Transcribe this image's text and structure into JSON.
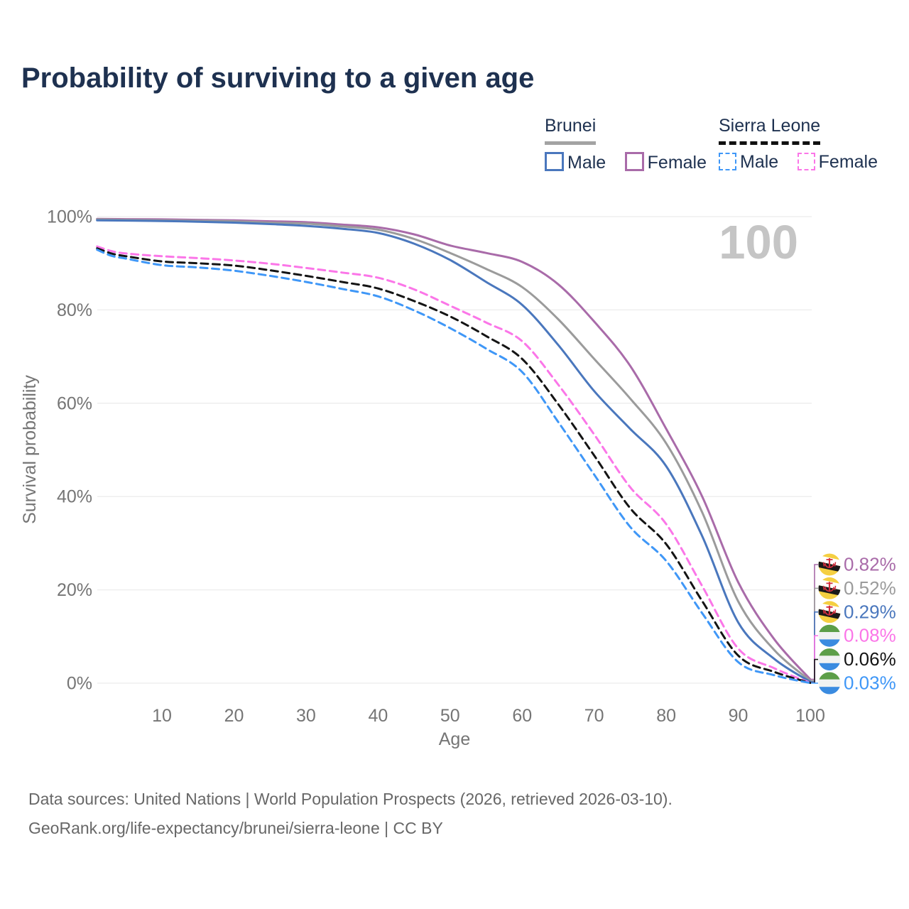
{
  "title": "Probability of surviving to a given age",
  "watermark": "100",
  "legend": {
    "groups": [
      {
        "country": "Brunei",
        "line_style": "solid",
        "underline_color": "#a3a3a3",
        "items": [
          {
            "label": "Male",
            "color": "#4a77bd",
            "dashed": false
          },
          {
            "label": "Female",
            "color": "#a96ba9",
            "dashed": false
          }
        ]
      },
      {
        "country": "Sierra Leone",
        "line_style": "dashed",
        "underline_color": "#111111",
        "items": [
          {
            "label": "Male",
            "color": "#3f97f7",
            "dashed": true
          },
          {
            "label": "Female",
            "color": "#fb76e8",
            "dashed": true
          }
        ]
      }
    ]
  },
  "chart_data": {
    "type": "line",
    "xlabel": "Age",
    "ylabel": "Survival probability",
    "x_ticks": [
      10,
      20,
      30,
      40,
      50,
      60,
      70,
      80,
      90,
      100
    ],
    "y_ticks": [
      {
        "value": 0,
        "label": "0%"
      },
      {
        "value": 20,
        "label": "20%"
      },
      {
        "value": 40,
        "label": "40%"
      },
      {
        "value": 60,
        "label": "60%"
      },
      {
        "value": 80,
        "label": "80%"
      },
      {
        "value": 100,
        "label": "100%"
      }
    ],
    "xlim": [
      1,
      100
    ],
    "ylim": [
      0,
      100
    ],
    "grid": "horizontal-only",
    "legend_position": "top-right",
    "series": [
      {
        "id": "brunei-female",
        "name": "Brunei Female",
        "color": "#a96ba9",
        "dashed": false,
        "end_label": "0.82%",
        "flag": "brunei",
        "points": [
          [
            1,
            99.5
          ],
          [
            5,
            99.45
          ],
          [
            10,
            99.4
          ],
          [
            15,
            99.3
          ],
          [
            20,
            99.2
          ],
          [
            25,
            99.0
          ],
          [
            30,
            98.8
          ],
          [
            35,
            98.3
          ],
          [
            40,
            97.7
          ],
          [
            45,
            96.2
          ],
          [
            50,
            93.8
          ],
          [
            55,
            92.2
          ],
          [
            60,
            90.3
          ],
          [
            65,
            85.5
          ],
          [
            70,
            77.5
          ],
          [
            75,
            68.0
          ],
          [
            80,
            54.5
          ],
          [
            85,
            40.0
          ],
          [
            90,
            21.6
          ],
          [
            95,
            9.4
          ],
          [
            100,
            0.82
          ]
        ]
      },
      {
        "id": "brunei-total",
        "name": "Brunei",
        "color": "#9b9b9b",
        "dashed": false,
        "end_label": "0.52%",
        "flag": "brunei",
        "points": [
          [
            1,
            99.4
          ],
          [
            5,
            99.3
          ],
          [
            10,
            99.2
          ],
          [
            15,
            99.1
          ],
          [
            20,
            99.0
          ],
          [
            25,
            98.7
          ],
          [
            30,
            98.5
          ],
          [
            35,
            97.9
          ],
          [
            40,
            97.2
          ],
          [
            45,
            95.2
          ],
          [
            50,
            92.2
          ],
          [
            55,
            88.8
          ],
          [
            60,
            84.9
          ],
          [
            65,
            78.0
          ],
          [
            70,
            69.5
          ],
          [
            75,
            61.0
          ],
          [
            80,
            51.4
          ],
          [
            85,
            36.6
          ],
          [
            90,
            17.5
          ],
          [
            95,
            7.1
          ],
          [
            100,
            0.52
          ]
        ]
      },
      {
        "id": "brunei-male",
        "name": "Brunei Male",
        "color": "#4a77bd",
        "dashed": false,
        "end_label": "0.29%",
        "flag": "brunei",
        "points": [
          [
            1,
            99.2
          ],
          [
            5,
            99.15
          ],
          [
            10,
            99.05
          ],
          [
            15,
            98.9
          ],
          [
            20,
            98.7
          ],
          [
            25,
            98.4
          ],
          [
            30,
            98.0
          ],
          [
            35,
            97.4
          ],
          [
            40,
            96.5
          ],
          [
            45,
            94.2
          ],
          [
            50,
            90.7
          ],
          [
            55,
            86.0
          ],
          [
            60,
            81.1
          ],
          [
            65,
            72.5
          ],
          [
            70,
            62.6
          ],
          [
            75,
            54.5
          ],
          [
            80,
            46.5
          ],
          [
            85,
            31.5
          ],
          [
            90,
            13.0
          ],
          [
            95,
            5.2
          ],
          [
            100,
            0.29
          ]
        ]
      },
      {
        "id": "sierra-leone-female",
        "name": "Sierra Leone Female",
        "color": "#fb76e8",
        "dashed": true,
        "end_label": "0.08%",
        "flag": "sierra-leone",
        "points": [
          [
            1,
            93.6
          ],
          [
            3,
            92.6
          ],
          [
            5,
            92.1
          ],
          [
            10,
            91.5
          ],
          [
            15,
            91.1
          ],
          [
            20,
            90.6
          ],
          [
            25,
            89.9
          ],
          [
            30,
            89.0
          ],
          [
            35,
            88.0
          ],
          [
            40,
            86.9
          ],
          [
            45,
            84.4
          ],
          [
            50,
            80.9
          ],
          [
            55,
            77.3
          ],
          [
            60,
            73.3
          ],
          [
            65,
            64.0
          ],
          [
            70,
            53.3
          ],
          [
            75,
            42.0
          ],
          [
            80,
            34.1
          ],
          [
            85,
            20.8
          ],
          [
            90,
            7.4
          ],
          [
            95,
            3.2
          ],
          [
            100,
            0.08
          ]
        ]
      },
      {
        "id": "sierra-leone-total",
        "name": "Sierra Leone",
        "color": "#141414",
        "dashed": true,
        "end_label": "0.06%",
        "flag": "sierra-leone",
        "points": [
          [
            1,
            93.2
          ],
          [
            3,
            92.1
          ],
          [
            5,
            91.5
          ],
          [
            10,
            90.4
          ],
          [
            15,
            90.0
          ],
          [
            20,
            89.5
          ],
          [
            25,
            88.5
          ],
          [
            30,
            87.3
          ],
          [
            35,
            86.0
          ],
          [
            40,
            84.6
          ],
          [
            45,
            81.9
          ],
          [
            50,
            78.6
          ],
          [
            55,
            74.4
          ],
          [
            60,
            69.5
          ],
          [
            65,
            59.8
          ],
          [
            70,
            48.8
          ],
          [
            75,
            37.5
          ],
          [
            80,
            29.8
          ],
          [
            85,
            17.6
          ],
          [
            90,
            5.9
          ],
          [
            95,
            2.4
          ],
          [
            100,
            0.06
          ]
        ]
      },
      {
        "id": "sierra-leone-male",
        "name": "Sierra Leone Male",
        "color": "#3f97f7",
        "dashed": true,
        "end_label": "0.03%",
        "flag": "sierra-leone",
        "points": [
          [
            1,
            92.9
          ],
          [
            3,
            91.6
          ],
          [
            5,
            91.0
          ],
          [
            10,
            89.6
          ],
          [
            15,
            89.1
          ],
          [
            20,
            88.4
          ],
          [
            25,
            87.3
          ],
          [
            30,
            86.0
          ],
          [
            35,
            84.5
          ],
          [
            40,
            82.9
          ],
          [
            45,
            79.9
          ],
          [
            50,
            76.1
          ],
          [
            55,
            71.7
          ],
          [
            60,
            66.7
          ],
          [
            65,
            56.0
          ],
          [
            70,
            44.7
          ],
          [
            75,
            33.5
          ],
          [
            80,
            26.2
          ],
          [
            85,
            15.0
          ],
          [
            90,
            4.5
          ],
          [
            95,
            1.7
          ],
          [
            100,
            0.03
          ]
        ]
      }
    ]
  },
  "footer": {
    "line1": "Data sources: United Nations | World Population Prospects (2026, retrieved 2026-03-10).",
    "line2": "GeoRank.org/life-expectancy/brunei/sierra-leone | CC BY"
  }
}
